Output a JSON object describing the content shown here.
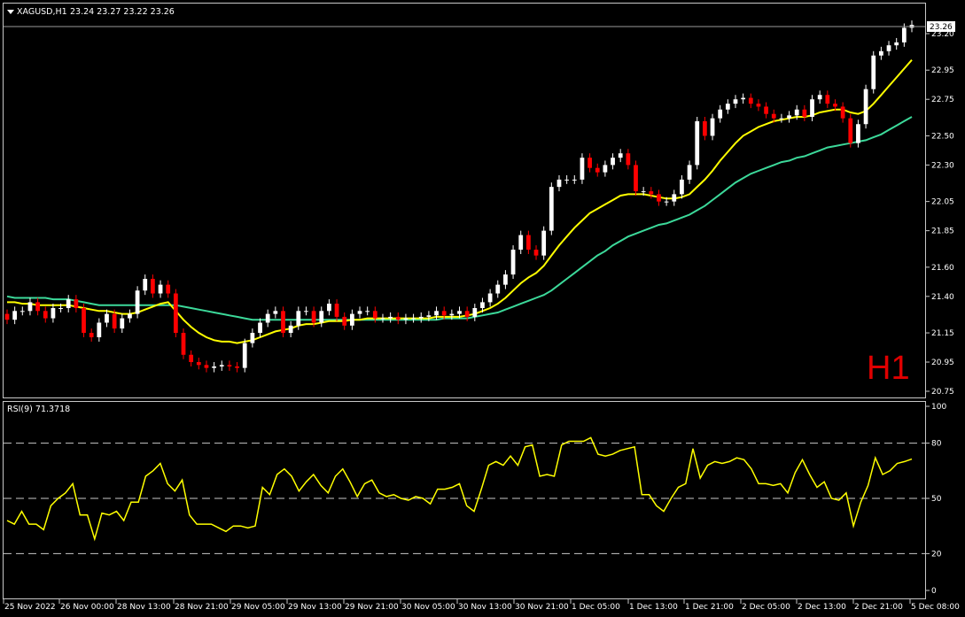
{
  "title": {
    "symbol_timeframe": "XAGUSD,H1",
    "ohlc": "23.24 23.27 23.22 23.26"
  },
  "timeframe_watermark": "H1",
  "current_price_label": "23.26",
  "price_axis_labels": [
    "23.20",
    "22.95",
    "22.75",
    "22.50",
    "22.30",
    "22.05",
    "21.85",
    "21.60",
    "21.40",
    "21.15",
    "20.95",
    "20.75"
  ],
  "time_axis_labels": [
    "25 Nov 2022",
    "26 Nov 00:00",
    "28 Nov 13:00",
    "28 Nov 21:00",
    "29 Nov 05:00",
    "29 Nov 13:00",
    "29 Nov 21:00",
    "30 Nov 05:00",
    "30 Nov 13:00",
    "30 Nov 21:00",
    "1 Dec 05:00",
    "1 Dec 13:00",
    "1 Dec 21:00",
    "2 Dec 05:00",
    "2 Dec 13:00",
    "2 Dec 21:00",
    "5 Dec 08:00"
  ],
  "rsi": {
    "label": "RSI(9) 71.3718",
    "axis_labels": [
      "100",
      "80",
      "50",
      "20",
      "0"
    ]
  },
  "colors": {
    "background": "#000000",
    "bull_candle": "#ffffff",
    "bear_candle": "#ff0000",
    "ma_fast": "#ffff00",
    "ma_slow": "#3cd99a",
    "rsi_line": "#ffff00",
    "grid_text": "#ffffff",
    "watermark": "#e00000"
  },
  "chart_data": [
    {
      "type": "candlestick",
      "symbol": "XAGUSD",
      "ylim": [
        20.75,
        23.26
      ],
      "close": [
        21.24,
        21.3,
        21.3,
        21.36,
        21.3,
        21.25,
        21.32,
        21.32,
        21.38,
        21.32,
        21.15,
        21.12,
        21.22,
        21.28,
        21.18,
        21.25,
        21.28,
        21.44,
        21.52,
        21.42,
        21.48,
        21.42,
        21.15,
        21.0,
        20.95,
        20.93,
        20.91,
        20.92,
        20.93,
        20.92,
        20.91,
        21.08,
        21.15,
        21.22,
        21.28,
        21.3,
        21.15,
        21.2,
        21.3,
        21.3,
        21.22,
        21.3,
        21.35,
        21.26,
        21.2,
        21.28,
        21.3,
        21.3,
        21.25,
        21.25,
        21.26,
        21.24,
        21.25,
        21.25,
        21.26,
        21.27,
        21.3,
        21.27,
        21.28,
        21.3,
        21.26,
        21.32,
        21.36,
        21.42,
        21.48,
        21.55,
        21.72,
        21.82,
        21.72,
        21.68,
        21.85,
        22.15,
        22.2,
        22.2,
        22.2,
        22.35,
        22.28,
        22.25,
        22.3,
        22.35,
        22.38,
        22.3,
        22.12,
        22.12,
        22.1,
        22.05,
        22.05,
        22.1,
        22.2,
        22.3,
        22.6,
        22.5,
        22.62,
        22.68,
        22.72,
        22.75,
        22.76,
        22.72,
        22.7,
        22.65,
        22.62,
        22.62,
        22.64,
        22.68,
        22.63,
        22.75,
        22.78,
        22.72,
        22.7,
        22.62,
        22.45,
        22.58,
        22.82,
        23.05,
        23.08,
        23.12,
        23.14,
        23.24,
        23.26
      ],
      "ma_fast_values": [
        21.36,
        21.36,
        21.35,
        21.35,
        21.34,
        21.34,
        21.34,
        21.34,
        21.34,
        21.33,
        21.32,
        21.31,
        21.3,
        21.3,
        21.29,
        21.28,
        21.28,
        21.29,
        21.31,
        21.33,
        21.35,
        21.36,
        21.3,
        21.24,
        21.19,
        21.15,
        21.12,
        21.1,
        21.09,
        21.09,
        21.08,
        21.09,
        21.1,
        21.12,
        21.14,
        21.16,
        21.17,
        21.18,
        21.2,
        21.21,
        21.21,
        21.22,
        21.23,
        21.23,
        21.23,
        21.24,
        21.24,
        21.25,
        21.25,
        21.25,
        21.25,
        21.25,
        21.25,
        21.25,
        21.25,
        21.25,
        21.26,
        21.26,
        21.26,
        21.26,
        21.27,
        21.28,
        21.3,
        21.32,
        21.35,
        21.39,
        21.44,
        21.49,
        21.53,
        21.56,
        21.61,
        21.68,
        21.75,
        21.81,
        21.87,
        21.92,
        21.97,
        22.0,
        22.03,
        22.06,
        22.09,
        22.1,
        22.1,
        22.1,
        22.09,
        22.08,
        22.07,
        22.07,
        22.08,
        22.1,
        22.15,
        22.2,
        22.26,
        22.33,
        22.39,
        22.45,
        22.5,
        22.53,
        22.56,
        22.58,
        22.6,
        22.61,
        22.62,
        22.63,
        22.63,
        22.64,
        22.66,
        22.67,
        22.68,
        22.68,
        22.66,
        22.65,
        22.67,
        22.72,
        22.78,
        22.84,
        22.9,
        22.96,
        23.02
      ],
      "ma_slow_values": [
        21.4,
        21.39,
        21.39,
        21.39,
        21.39,
        21.39,
        21.38,
        21.38,
        21.38,
        21.37,
        21.36,
        21.35,
        21.34,
        21.34,
        21.34,
        21.34,
        21.34,
        21.34,
        21.34,
        21.34,
        21.34,
        21.34,
        21.34,
        21.33,
        21.32,
        21.31,
        21.3,
        21.29,
        21.28,
        21.27,
        21.26,
        21.25,
        21.24,
        21.24,
        21.24,
        21.24,
        21.24,
        21.24,
        21.24,
        21.24,
        21.24,
        21.24,
        21.24,
        21.24,
        21.24,
        21.24,
        21.24,
        21.24,
        21.24,
        21.24,
        21.24,
        21.24,
        21.24,
        21.24,
        21.24,
        21.24,
        21.24,
        21.25,
        21.25,
        21.25,
        21.25,
        21.26,
        21.27,
        21.28,
        21.29,
        21.31,
        21.33,
        21.35,
        21.37,
        21.39,
        21.41,
        21.44,
        21.48,
        21.52,
        21.56,
        21.6,
        21.64,
        21.68,
        21.71,
        21.75,
        21.78,
        21.81,
        21.83,
        21.85,
        21.87,
        21.89,
        21.9,
        21.92,
        21.94,
        21.96,
        21.99,
        22.02,
        22.06,
        22.1,
        22.14,
        22.18,
        22.21,
        22.24,
        22.26,
        22.28,
        22.3,
        22.32,
        22.33,
        22.35,
        22.36,
        22.38,
        22.4,
        22.42,
        22.43,
        22.44,
        22.45,
        22.46,
        22.47,
        22.49,
        22.51,
        22.54,
        22.57,
        22.6,
        22.63
      ]
    },
    {
      "type": "line",
      "name": "RSI(9)",
      "ylim": [
        0,
        100
      ],
      "levels": [
        20,
        50,
        80
      ],
      "values": [
        38,
        36,
        43,
        36,
        36,
        33,
        46,
        50,
        53,
        58,
        41,
        41,
        28,
        42,
        41,
        43,
        38,
        48,
        48,
        62,
        65,
        69,
        58,
        54,
        60,
        41,
        36,
        36,
        36,
        34,
        32,
        35,
        35,
        34,
        35,
        56,
        52,
        63,
        66,
        62,
        54,
        59,
        63,
        57,
        53,
        62,
        66,
        59,
        51,
        58,
        60,
        53,
        51,
        52,
        50,
        49,
        51,
        50,
        47,
        55,
        55,
        56,
        58,
        46,
        43,
        55,
        68,
        70,
        68,
        73,
        68,
        78,
        79,
        62,
        63,
        62,
        79,
        81,
        81,
        81,
        83,
        74,
        73,
        74,
        76,
        77,
        78,
        52,
        52,
        46,
        43,
        50,
        56,
        58,
        77,
        61,
        68,
        70,
        69,
        70,
        72,
        71,
        66,
        58,
        58,
        57,
        58,
        53,
        64,
        71,
        63,
        56,
        59,
        50,
        49,
        53,
        35,
        48,
        57,
        72,
        63,
        65,
        69,
        70,
        71.37
      ]
    }
  ]
}
